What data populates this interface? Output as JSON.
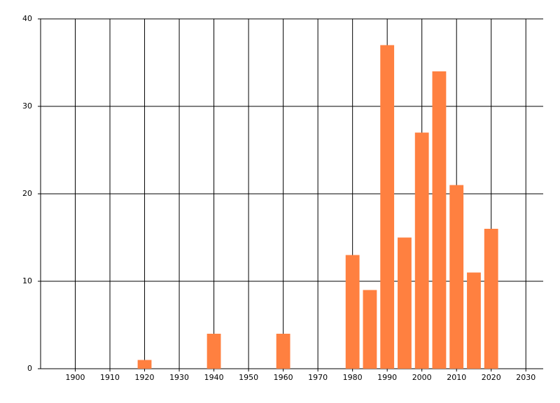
{
  "chart_data": {
    "type": "bar",
    "x": [
      1920,
      1940,
      1960,
      1980,
      1985,
      1990,
      1995,
      2000,
      2005,
      2010,
      2015,
      2020
    ],
    "values": [
      1,
      4,
      4,
      13,
      9,
      37,
      15,
      27,
      34,
      21,
      11,
      16
    ],
    "color": "#ff8040",
    "xlim": [
      1890,
      2035
    ],
    "xticks": [
      1900,
      1910,
      1920,
      1930,
      1940,
      1950,
      1960,
      1970,
      1980,
      1990,
      2000,
      2010,
      2020,
      2030
    ],
    "ylim": [
      0,
      40
    ],
    "yticks": [
      0,
      10,
      20,
      30,
      40
    ],
    "grid": true
  }
}
